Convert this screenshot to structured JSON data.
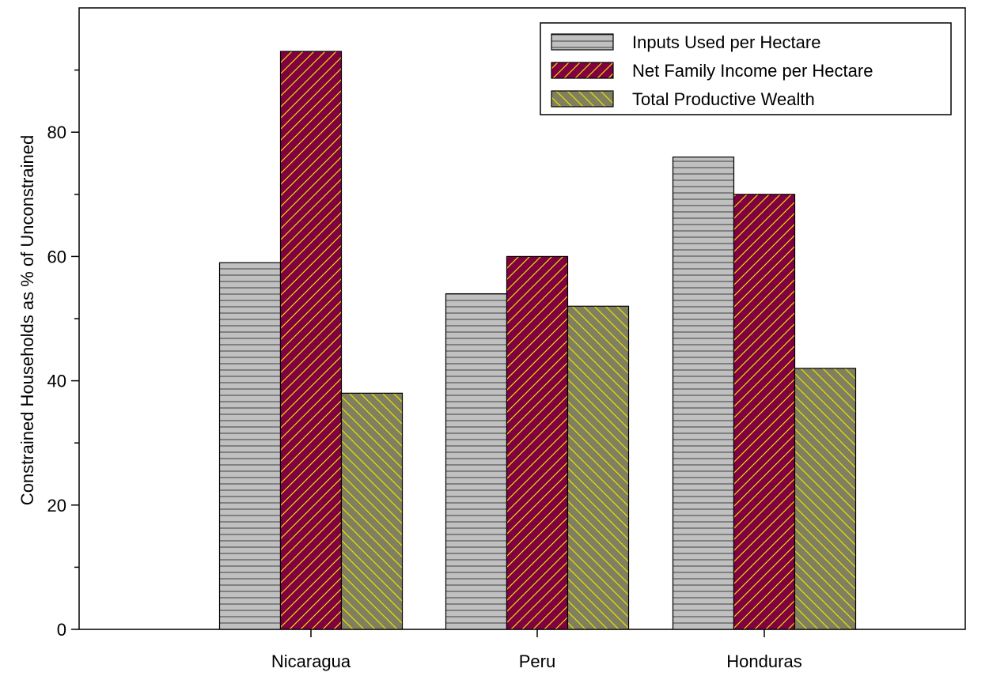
{
  "chart_data": {
    "type": "bar",
    "title": "",
    "xlabel": "",
    "ylabel": "Constrained Households as % of Unconstrained",
    "categories": [
      "Nicaragua",
      "Peru",
      "Honduras"
    ],
    "series": [
      {
        "name": "Inputs Used per Hectare",
        "values": [
          59,
          54,
          76
        ],
        "color": "#c0c0c0",
        "pattern": "horizontal-lines"
      },
      {
        "name": "Net Family Income per Hectare",
        "values": [
          93,
          60,
          70
        ],
        "color": "#800040",
        "pattern": "forward-diagonal-yellow"
      },
      {
        "name": "Total Productive Wealth",
        "values": [
          38,
          52,
          42
        ],
        "color": "#808060",
        "pattern": "backward-diagonal-yellow"
      }
    ],
    "ylim": [
      0,
      100
    ],
    "yticks_major": [
      0,
      20,
      40,
      60,
      80
    ],
    "yticks_minor": [
      10,
      30,
      50,
      70,
      90
    ],
    "grid": false,
    "legend_position": "top-right"
  }
}
